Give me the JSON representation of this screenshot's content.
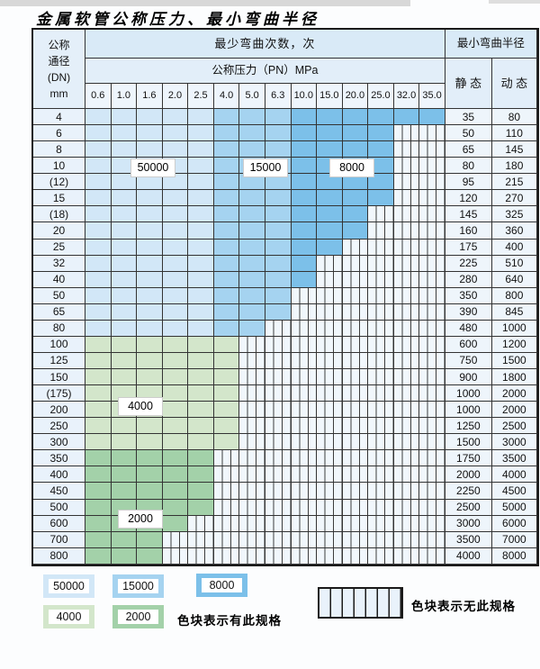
{
  "title": "金属软管公称压力、最小弯曲半径",
  "table": {
    "dn_header_lines": [
      "公称",
      "通径",
      "(DN)",
      "mm"
    ],
    "cycles_header": "最少弯曲次数，次",
    "pressure_header": "公称压力（PN）MPa",
    "radius_header": "最小弯曲半径",
    "static_label": "静 态",
    "dynamic_label": "动 态",
    "pressures": [
      "0.6",
      "1.0",
      "1.6",
      "2.0",
      "2.5",
      "4.0",
      "5.0",
      "6.3",
      "10.0",
      "15.0",
      "20.0",
      "25.0",
      "32.0",
      "35.0"
    ],
    "rows": [
      {
        "dn": "4",
        "max_pn": "35.0",
        "group": "blue",
        "static": "35",
        "dynamic": "80"
      },
      {
        "dn": "6",
        "max_pn": "25.0",
        "group": "blue",
        "static": "50",
        "dynamic": "110"
      },
      {
        "dn": "8",
        "max_pn": "25.0",
        "group": "blue",
        "static": "65",
        "dynamic": "145"
      },
      {
        "dn": "10",
        "max_pn": "25.0",
        "group": "blue",
        "static": "80",
        "dynamic": "180"
      },
      {
        "dn": "(12)",
        "max_pn": "25.0",
        "group": "blue",
        "static": "95",
        "dynamic": "215"
      },
      {
        "dn": "15",
        "max_pn": "25.0",
        "group": "blue",
        "static": "120",
        "dynamic": "270"
      },
      {
        "dn": "(18)",
        "max_pn": "20.0",
        "group": "blue",
        "static": "145",
        "dynamic": "325"
      },
      {
        "dn": "20",
        "max_pn": "20.0",
        "group": "blue",
        "static": "160",
        "dynamic": "360"
      },
      {
        "dn": "25",
        "max_pn": "15.0",
        "group": "blue",
        "static": "175",
        "dynamic": "400"
      },
      {
        "dn": "32",
        "max_pn": "10.0",
        "group": "blue",
        "static": "225",
        "dynamic": "510"
      },
      {
        "dn": "40",
        "max_pn": "10.0",
        "group": "blue",
        "static": "280",
        "dynamic": "640"
      },
      {
        "dn": "50",
        "max_pn": "6.3",
        "group": "blue",
        "static": "350",
        "dynamic": "800"
      },
      {
        "dn": "65",
        "max_pn": "6.3",
        "group": "blue",
        "static": "390",
        "dynamic": "845"
      },
      {
        "dn": "80",
        "max_pn": "5.0",
        "group": "blue",
        "static": "480",
        "dynamic": "1000"
      },
      {
        "dn": "100",
        "max_pn": "4.0",
        "group": "green4000",
        "static": "600",
        "dynamic": "1200"
      },
      {
        "dn": "125",
        "max_pn": "4.0",
        "group": "green4000",
        "static": "750",
        "dynamic": "1500"
      },
      {
        "dn": "150",
        "max_pn": "4.0",
        "group": "green4000",
        "static": "900",
        "dynamic": "1800"
      },
      {
        "dn": "(175)",
        "max_pn": "4.0",
        "group": "green4000",
        "static": "1000",
        "dynamic": "2000"
      },
      {
        "dn": "200",
        "max_pn": "4.0",
        "group": "green4000",
        "static": "1000",
        "dynamic": "2000"
      },
      {
        "dn": "250",
        "max_pn": "4.0",
        "group": "green4000",
        "static": "1250",
        "dynamic": "2500"
      },
      {
        "dn": "300",
        "max_pn": "4.0",
        "group": "green4000",
        "static": "1500",
        "dynamic": "3000"
      },
      {
        "dn": "350",
        "max_pn": "2.5",
        "group": "green2000",
        "static": "1750",
        "dynamic": "3500"
      },
      {
        "dn": "400",
        "max_pn": "2.5",
        "group": "green2000",
        "static": "2000",
        "dynamic": "4000"
      },
      {
        "dn": "450",
        "max_pn": "2.5",
        "group": "green2000",
        "static": "2250",
        "dynamic": "4500"
      },
      {
        "dn": "500",
        "max_pn": "2.5",
        "group": "green2000",
        "static": "2500",
        "dynamic": "5000"
      },
      {
        "dn": "600",
        "max_pn": "2.0",
        "group": "green2000",
        "static": "3000",
        "dynamic": "6000"
      },
      {
        "dn": "700",
        "max_pn": "1.6",
        "group": "green2000",
        "static": "3500",
        "dynamic": "7000"
      },
      {
        "dn": "800",
        "max_pn": "1.6",
        "group": "green2000",
        "static": "4000",
        "dynamic": "8000"
      }
    ]
  },
  "cycle_zones": {
    "blue_by_pressure": [
      {
        "cycles": "50000",
        "pn_from": "0.6",
        "pn_to": "2.5"
      },
      {
        "cycles": "15000",
        "pn_from": "4.0",
        "pn_to": "6.3"
      },
      {
        "cycles": "8000",
        "pn_from": "10.0",
        "pn_to": "35.0"
      }
    ],
    "green_by_dn": [
      {
        "cycles": "4000",
        "dn_from": "100",
        "dn_to": "300"
      },
      {
        "cycles": "2000",
        "dn_from": "350",
        "dn_to": "800"
      }
    ]
  },
  "overlay_labels": [
    "50000",
    "15000",
    "8000",
    "4000",
    "2000"
  ],
  "palette": {
    "cycles_50000": "#d2e7f7",
    "cycles_15000": "#a5d3f0",
    "cycles_8000": "#7cc0e9",
    "cycles_4000": "#d3e6cb",
    "cycles_2000": "#a3d1a9",
    "nospec_bg": "#f1f7fc"
  },
  "legend": {
    "items": [
      {
        "label": "50000",
        "colorKey": "cycles_50000"
      },
      {
        "label": "15000",
        "colorKey": "cycles_15000"
      },
      {
        "label": "8000",
        "colorKey": "cycles_8000"
      },
      {
        "label": "4000",
        "colorKey": "cycles_4000"
      },
      {
        "label": "2000",
        "colorKey": "cycles_2000"
      }
    ],
    "has_spec_text": "色块表示有此规格",
    "no_spec_text": "色块表示无此规格"
  }
}
